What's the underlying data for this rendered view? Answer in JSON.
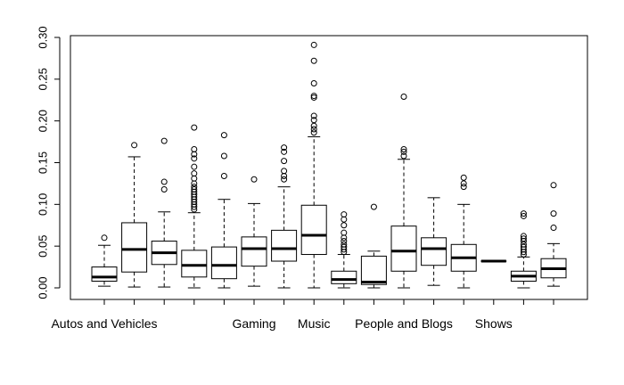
{
  "chart_data": {
    "type": "box",
    "title": "",
    "xlabel": "",
    "ylabel": "",
    "ylim": [
      0.0,
      0.3
    ],
    "yticks": [
      0.0,
      0.05,
      0.1,
      0.15,
      0.2,
      0.25,
      0.3
    ],
    "ytick_labels": [
      "0.00",
      "0.05",
      "0.10",
      "0.15",
      "0.20",
      "0.25",
      "0.30"
    ],
    "grid": false,
    "xtick_labels": [
      {
        "position": 1,
        "label": "Autos and Vehicles"
      },
      {
        "position": 6,
        "label": "Gaming"
      },
      {
        "position": 8,
        "label": "Music"
      },
      {
        "position": 11,
        "label": "People and Blogs"
      },
      {
        "position": 14,
        "label": "Shows"
      }
    ],
    "boxes": [
      {
        "whisker_low": 0.002,
        "q1": 0.008,
        "median": 0.013,
        "q3": 0.025,
        "whisker_high": 0.051,
        "outliers": [
          0.06
        ]
      },
      {
        "whisker_low": 0.001,
        "q1": 0.019,
        "median": 0.046,
        "q3": 0.078,
        "whisker_high": 0.157,
        "outliers": [
          0.171
        ]
      },
      {
        "whisker_low": 0.001,
        "q1": 0.028,
        "median": 0.042,
        "q3": 0.056,
        "whisker_high": 0.091,
        "outliers": [
          0.118,
          0.127,
          0.176
        ]
      },
      {
        "whisker_low": 0.0,
        "q1": 0.013,
        "median": 0.027,
        "q3": 0.045,
        "whisker_high": 0.09,
        "outliers": [
          0.094,
          0.097,
          0.1,
          0.103,
          0.106,
          0.109,
          0.112,
          0.115,
          0.118,
          0.121,
          0.125,
          0.131,
          0.137,
          0.145,
          0.155,
          0.16,
          0.166,
          0.192
        ]
      },
      {
        "whisker_low": 0.0,
        "q1": 0.011,
        "median": 0.027,
        "q3": 0.049,
        "whisker_high": 0.106,
        "outliers": [
          0.134,
          0.158,
          0.183
        ]
      },
      {
        "whisker_low": 0.002,
        "q1": 0.026,
        "median": 0.047,
        "q3": 0.061,
        "whisker_high": 0.101,
        "outliers": [
          0.13
        ]
      },
      {
        "whisker_low": 0.0,
        "q1": 0.032,
        "median": 0.047,
        "q3": 0.069,
        "whisker_high": 0.121,
        "outliers": [
          0.13,
          0.134,
          0.14,
          0.152,
          0.163,
          0.168
        ]
      },
      {
        "whisker_low": 0.0,
        "q1": 0.04,
        "median": 0.063,
        "q3": 0.099,
        "whisker_high": 0.181,
        "outliers": [
          0.186,
          0.19,
          0.194,
          0.201,
          0.206,
          0.228,
          0.23,
          0.245,
          0.272,
          0.291
        ]
      },
      {
        "whisker_low": 0.0,
        "q1": 0.005,
        "median": 0.01,
        "q3": 0.02,
        "whisker_high": 0.04,
        "outliers": [
          0.043,
          0.046,
          0.049,
          0.052,
          0.056,
          0.06,
          0.066,
          0.075,
          0.082,
          0.088
        ]
      },
      {
        "whisker_low": 0.0,
        "q1": 0.004,
        "median": 0.007,
        "q3": 0.038,
        "whisker_high": 0.044,
        "outliers": [
          0.097
        ]
      },
      {
        "whisker_low": 0.0,
        "q1": 0.02,
        "median": 0.044,
        "q3": 0.074,
        "whisker_high": 0.154,
        "outliers": [
          0.158,
          0.163,
          0.166,
          0.229
        ]
      },
      {
        "whisker_low": 0.003,
        "q1": 0.027,
        "median": 0.047,
        "q3": 0.06,
        "whisker_high": 0.108,
        "outliers": []
      },
      {
        "whisker_low": 0.0,
        "q1": 0.02,
        "median": 0.036,
        "q3": 0.052,
        "whisker_high": 0.1,
        "outliers": [
          0.121,
          0.125,
          0.132
        ]
      },
      {
        "whisker_low": 0.032,
        "q1": 0.032,
        "median": 0.032,
        "q3": 0.032,
        "whisker_high": 0.032,
        "outliers": []
      },
      {
        "whisker_low": 0.0,
        "q1": 0.008,
        "median": 0.014,
        "q3": 0.02,
        "whisker_high": 0.037,
        "outliers": [
          0.04,
          0.043,
          0.046,
          0.049,
          0.052,
          0.056,
          0.059,
          0.062,
          0.086,
          0.089
        ]
      },
      {
        "whisker_low": 0.002,
        "q1": 0.012,
        "median": 0.023,
        "q3": 0.035,
        "whisker_high": 0.053,
        "outliers": [
          0.072,
          0.089,
          0.123
        ]
      }
    ]
  }
}
